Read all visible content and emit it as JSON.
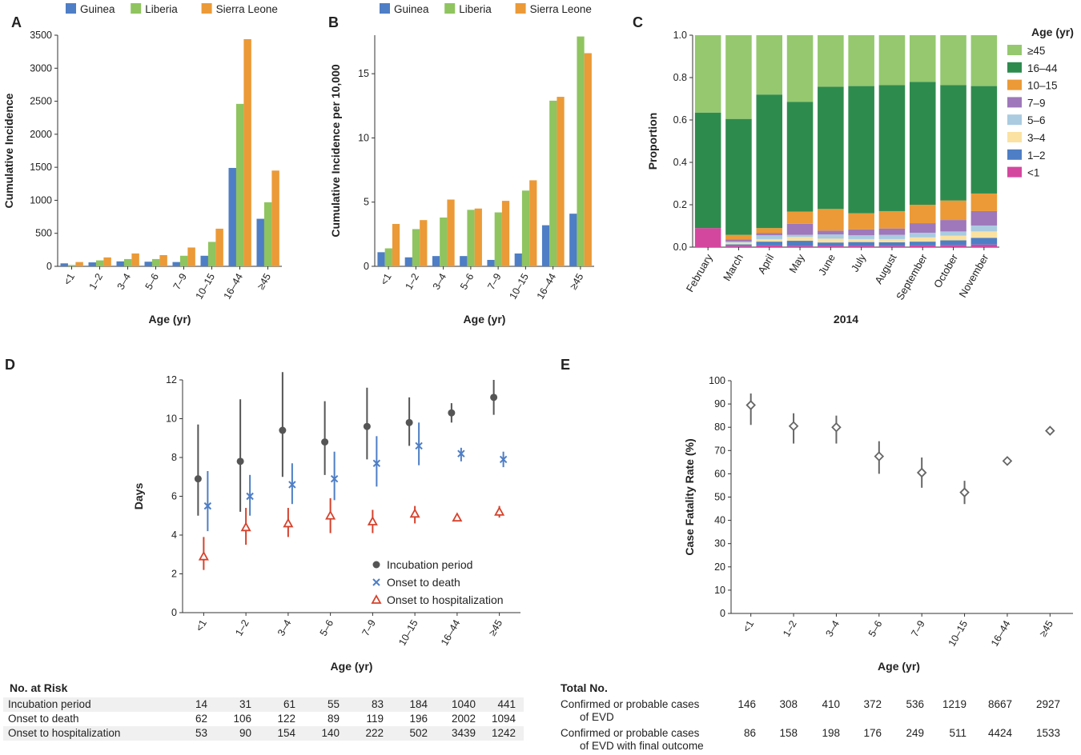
{
  "panels": {
    "A": {
      "letter": "A",
      "chart_data": {
        "type": "bar",
        "categories": [
          "<1",
          "1–2",
          "3–4",
          "5–6",
          "7–9",
          "10–15",
          "16–44",
          "≥45"
        ],
        "series": [
          {
            "name": "Guinea",
            "values": [
              45,
              60,
              75,
              70,
              65,
              160,
              1490,
              720
            ]
          },
          {
            "name": "Liberia",
            "values": [
              20,
              90,
              110,
              110,
              160,
              370,
              2460,
              970
            ]
          },
          {
            "name": "Sierra Leone",
            "values": [
              65,
              135,
              195,
              170,
              285,
              570,
              3440,
              1450
            ]
          }
        ],
        "title": "",
        "xlabel": "Age (yr)",
        "ylabel": "Cumulative Incidence",
        "ylim": [
          0,
          3500
        ],
        "yticks": [
          0,
          500,
          1000,
          1500,
          2000,
          2500,
          3000,
          3500
        ]
      }
    },
    "B": {
      "letter": "B",
      "chart_data": {
        "type": "bar",
        "categories": [
          "<1",
          "1–2",
          "3–4",
          "5–6",
          "7–9",
          "10–15",
          "16–44",
          "≥45"
        ],
        "series": [
          {
            "name": "Guinea",
            "values": [
              1.1,
              0.7,
              0.8,
              0.8,
              0.5,
              1.0,
              3.2,
              4.1
            ]
          },
          {
            "name": "Liberia",
            "values": [
              1.4,
              2.9,
              3.8,
              4.4,
              4.2,
              5.9,
              12.9,
              17.9
            ]
          },
          {
            "name": "Sierra Leone",
            "values": [
              3.3,
              3.6,
              5.2,
              4.5,
              5.1,
              6.7,
              13.2,
              16.6
            ]
          }
        ],
        "title": "",
        "xlabel": "Age (yr)",
        "ylabel": "Cumulative Incidence per 10,000",
        "ylim": [
          0,
          18
        ],
        "yticks": [
          0,
          5,
          10,
          15
        ]
      }
    },
    "C": {
      "letter": "C",
      "chart_data": {
        "type": "bar",
        "stacked": true,
        "categories": [
          "February",
          "March",
          "April",
          "May",
          "June",
          "July",
          "August",
          "September",
          "October",
          "November"
        ],
        "series": [
          {
            "name": "<1",
            "values": [
              0.09,
              0.005,
              0.008,
              0.005,
              0.006,
              0.006,
              0.005,
              0.008,
              0.01,
              0.012
            ]
          },
          {
            "name": "1–2",
            "values": [
              0.0,
              0.008,
              0.018,
              0.025,
              0.016,
              0.018,
              0.018,
              0.018,
              0.022,
              0.032
            ]
          },
          {
            "name": "3–4",
            "values": [
              0.0,
              0.008,
              0.012,
              0.018,
              0.018,
              0.014,
              0.015,
              0.02,
              0.022,
              0.03
            ]
          },
          {
            "name": "5–6",
            "values": [
              0.0,
              0.005,
              0.018,
              0.01,
              0.02,
              0.018,
              0.02,
              0.022,
              0.02,
              0.028
            ]
          },
          {
            "name": "7–9",
            "values": [
              0.0,
              0.01,
              0.01,
              0.052,
              0.018,
              0.028,
              0.03,
              0.045,
              0.054,
              0.068
            ]
          },
          {
            "name": "10–15",
            "values": [
              0.0,
              0.022,
              0.024,
              0.058,
              0.102,
              0.076,
              0.082,
              0.087,
              0.092,
              0.083
            ]
          },
          {
            "name": "16–44",
            "values": [
              0.545,
              0.547,
              0.63,
              0.517,
              0.577,
              0.6,
              0.595,
              0.58,
              0.545,
              0.507
            ]
          },
          {
            "name": "≥45",
            "values": [
              0.365,
              0.395,
              0.28,
              0.315,
              0.243,
              0.24,
              0.235,
              0.22,
              0.235,
              0.24
            ]
          }
        ],
        "xlabel": "2014",
        "ylabel": "Proportion",
        "ylim": [
          0,
          1.0
        ],
        "yticks": [
          "0.0",
          "0.2",
          "0.4",
          "0.6",
          "0.8",
          "1.0"
        ],
        "legend_title": "Age (yr)",
        "legend_order": [
          "≥45",
          "16–44",
          "10–15",
          "7–9",
          "5–6",
          "3–4",
          "1–2",
          "<1"
        ]
      }
    },
    "D": {
      "letter": "D",
      "chart_data": {
        "type": "scatter",
        "categories": [
          "<1",
          "1–2",
          "3–4",
          "5–6",
          "7–9",
          "10–15",
          "16–44",
          "≥45"
        ],
        "series": [
          {
            "name": "Incubation period",
            "marker": "circle",
            "values": [
              6.9,
              7.8,
              9.4,
              8.8,
              9.6,
              9.8,
              10.3,
              11.1
            ],
            "low": [
              5.0,
              5.2,
              7.0,
              7.1,
              7.9,
              8.6,
              9.8,
              10.2
            ],
            "high": [
              9.7,
              11.0,
              12.4,
              10.9,
              11.6,
              11.1,
              10.8,
              12.0
            ]
          },
          {
            "name": "Onset to death",
            "marker": "x",
            "values": [
              5.5,
              6.0,
              6.6,
              6.9,
              7.7,
              8.6,
              8.2,
              7.9
            ],
            "low": [
              4.2,
              5.0,
              5.6,
              5.8,
              6.5,
              7.6,
              7.8,
              7.5
            ],
            "high": [
              7.3,
              7.1,
              7.7,
              8.3,
              9.1,
              9.8,
              8.5,
              8.3
            ]
          },
          {
            "name": "Onset to hospitalization",
            "marker": "triangle",
            "values": [
              2.9,
              4.4,
              4.6,
              5.0,
              4.7,
              5.1,
              4.9,
              5.2
            ],
            "low": [
              2.2,
              3.5,
              3.9,
              4.1,
              4.1,
              4.6,
              4.7,
              4.9
            ],
            "high": [
              3.9,
              5.4,
              5.4,
              5.9,
              5.3,
              5.5,
              5.1,
              5.5
            ]
          }
        ],
        "xlabel": "Age (yr)",
        "ylabel": "Days",
        "ylim": [
          0,
          12
        ],
        "yticks": [
          0,
          2,
          4,
          6,
          8,
          10,
          12
        ]
      }
    },
    "E": {
      "letter": "E",
      "chart_data": {
        "type": "scatter",
        "categories": [
          "<1",
          "1–2",
          "3–4",
          "5–6",
          "7–9",
          "10–15",
          "16–44",
          "≥45"
        ],
        "series": [
          {
            "name": "Case Fatality Rate",
            "marker": "diamond",
            "values": [
              89.5,
              80.5,
              80.0,
              67.5,
              60.5,
              52.0,
              65.5,
              78.5
            ],
            "low": [
              81,
              73,
              73,
              60,
              54,
              47,
              64,
              77
            ],
            "high": [
              94.5,
              86,
              85,
              74,
              67,
              57,
              67,
              80
            ]
          }
        ],
        "xlabel": "Age (yr)",
        "ylabel": "Case Fatality Rate (%)",
        "ylim": [
          0,
          100
        ],
        "yticks": [
          0,
          10,
          20,
          30,
          40,
          50,
          60,
          70,
          80,
          90,
          100
        ]
      }
    }
  },
  "colors": {
    "Guinea": "#4e7ec5",
    "Liberia": "#8fc45f",
    "Sierra Leone": "#eb9a37",
    "<1": "#d4479f",
    "1–2": "#4e7ec5",
    "3–4": "#fbe2a2",
    "5–6": "#aacbe0",
    "7–9": "#9e78ba",
    "10–15": "#eb9a37",
    "16–44": "#2e8b4e",
    "≥45": "#95c86f",
    "incubation": "#555555",
    "death": "#4e7ec5",
    "hospitalization": "#d6422c",
    "cfr": "#666666",
    "axis": "#333333",
    "table_shade": "#f0f0f0"
  },
  "table_D": {
    "title": "No. at Risk",
    "rows": [
      {
        "label": "Incubation period",
        "values": [
          "14",
          "31",
          "61",
          "55",
          "83",
          "184",
          "1040",
          "441"
        ]
      },
      {
        "label": "Onset to death",
        "values": [
          "62",
          "106",
          "122",
          "89",
          "119",
          "196",
          "2002",
          "1094"
        ]
      },
      {
        "label": "Onset to hospitalization",
        "values": [
          "53",
          "90",
          "154",
          "140",
          "222",
          "502",
          "3439",
          "1242"
        ]
      }
    ]
  },
  "table_E": {
    "title": "Total No.",
    "rows": [
      {
        "label": "Confirmed or probable cases",
        "label2": "of EVD",
        "values": [
          "146",
          "308",
          "410",
          "372",
          "536",
          "1219",
          "8667",
          "2927"
        ]
      },
      {
        "label": "Confirmed or probable cases",
        "label2": "of EVD with final outcome",
        "values": [
          "86",
          "158",
          "198",
          "176",
          "249",
          "511",
          "4424",
          "1533"
        ]
      }
    ]
  }
}
